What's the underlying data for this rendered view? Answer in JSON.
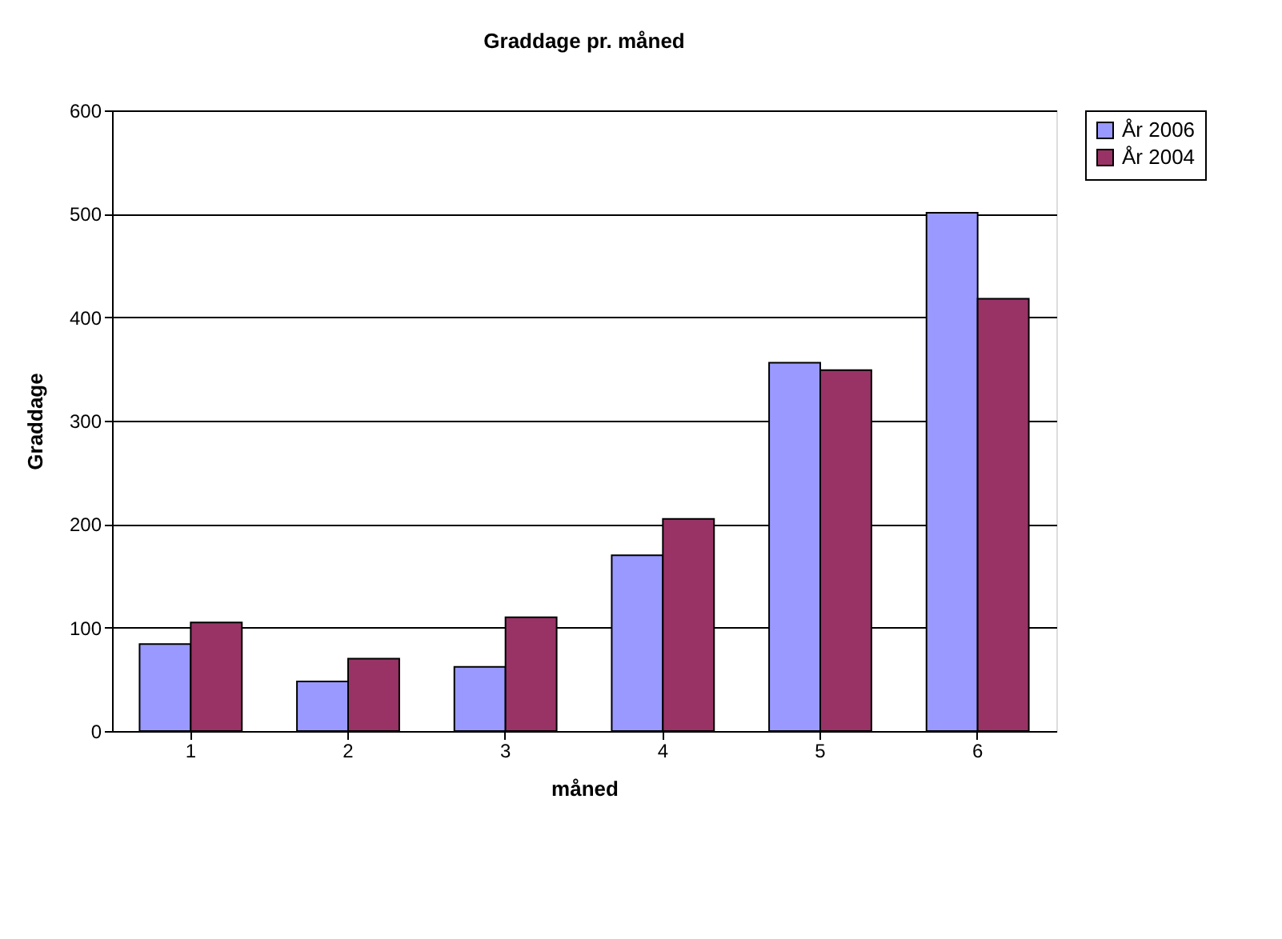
{
  "chart_data": {
    "type": "bar",
    "title": "Graddage pr. måned",
    "xlabel": "måned",
    "ylabel": "Graddage",
    "categories": [
      "1",
      "2",
      "3",
      "4",
      "5",
      "6"
    ],
    "series": [
      {
        "name": "År 2006",
        "color": "#9999ff",
        "values": [
          84,
          48,
          62,
          170,
          356,
          501
        ]
      },
      {
        "name": "År 2004",
        "color": "#993366",
        "values": [
          105,
          70,
          110,
          205,
          349,
          418
        ]
      }
    ],
    "ylim": [
      0,
      600
    ],
    "yticks": [
      0,
      100,
      200,
      300,
      400,
      500,
      600
    ],
    "grid": "y",
    "legend": "right"
  }
}
